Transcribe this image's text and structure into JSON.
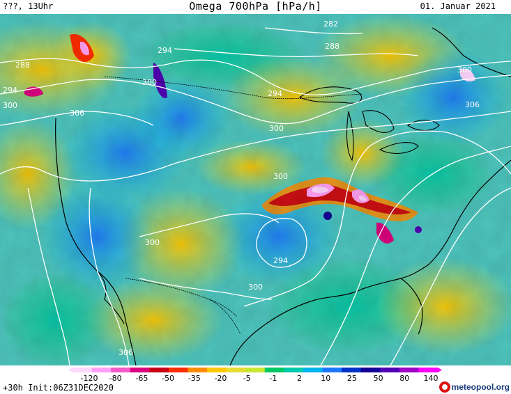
{
  "header": {
    "left": "???, 13Uhr",
    "title": "Omega 700hPa [hPa/h]",
    "date": "01. Januar 2021"
  },
  "footer": {
    "run_info": "+30h Init:06Z31DEC2020",
    "brand": "meteopool.org"
  },
  "legend": {
    "ticks": [
      "-120",
      "-80",
      "-65",
      "-50",
      "-35",
      "-20",
      "-5",
      "-1",
      "2",
      "10",
      "25",
      "50",
      "80",
      "140"
    ],
    "colors": [
      "#ffd7ff",
      "#ffa0f5",
      "#f55ac8",
      "#dc0080",
      "#c80014",
      "#ff2d00",
      "#ff8c00",
      "#ffc800",
      "#e6dc32",
      "#c8e632",
      "#00c864",
      "#00c8aa",
      "#00b4f0",
      "#1e78ff",
      "#0032c8",
      "#140096",
      "#5000b4",
      "#a000c8",
      "#ff00ff"
    ]
  },
  "contours": {
    "labels": [
      "282",
      "288",
      "294",
      "300",
      "306",
      "300",
      "294",
      "288",
      "294",
      "300",
      "306",
      "300",
      "300",
      "300",
      "294",
      "300",
      "306"
    ]
  },
  "colors": {
    "contour": "#ffffff",
    "coastline": "#000000",
    "brand": "#1a3a7a",
    "brand_logo": "#dd1111"
  }
}
